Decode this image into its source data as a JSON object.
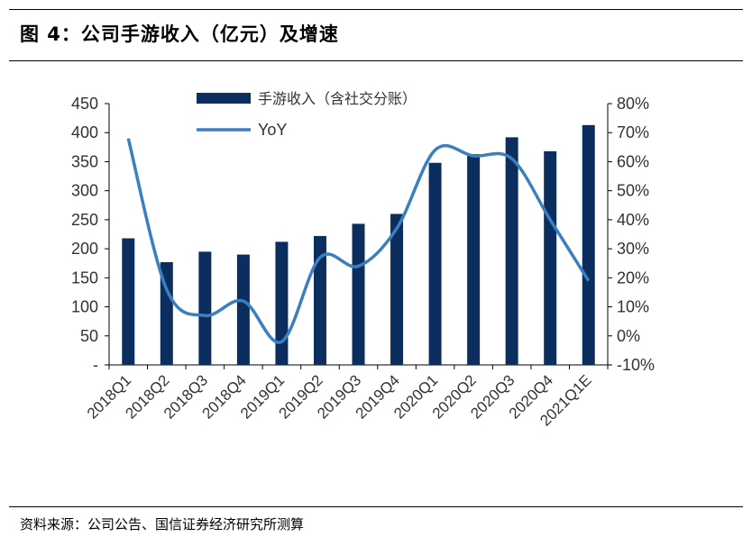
{
  "header": {
    "title": "图 4：公司手游收入（亿元）及增速"
  },
  "footer": {
    "source": "资料来源：公司公告、国信证券经济研究所测算"
  },
  "chart_data": {
    "type": "bar+line",
    "categories": [
      "2018Q1",
      "2018Q2",
      "2018Q3",
      "2018Q4",
      "2019Q1",
      "2019Q2",
      "2019Q3",
      "2019Q4",
      "2020Q1",
      "2020Q2",
      "2020Q3",
      "2020Q4",
      "2021Q1E"
    ],
    "series": [
      {
        "name": "手游收入（含社交分账）",
        "type": "bar",
        "axis": "left",
        "values": [
          218,
          177,
          195,
          190,
          212,
          222,
          243,
          260,
          348,
          363,
          392,
          368,
          413
        ]
      },
      {
        "name": "YoY",
        "type": "line",
        "axis": "right",
        "values": [
          68,
          16,
          7,
          12,
          -2,
          27,
          24,
          37,
          64,
          62,
          61,
          40,
          19
        ]
      }
    ],
    "y_left": {
      "min": 0,
      "max": 450,
      "step": 50,
      "tick_labels": [
        "-",
        "50",
        "100",
        "150",
        "200",
        "250",
        "300",
        "350",
        "400",
        "450"
      ]
    },
    "y_right": {
      "min": -10,
      "max": 80,
      "step": 10,
      "tick_labels": [
        "-10%",
        "0%",
        "10%",
        "20%",
        "30%",
        "40%",
        "50%",
        "60%",
        "70%",
        "80%"
      ]
    },
    "colors": {
      "bar": "#0b2e5e",
      "line": "#3a7fc0"
    },
    "legend": {
      "position": "top-center"
    }
  }
}
